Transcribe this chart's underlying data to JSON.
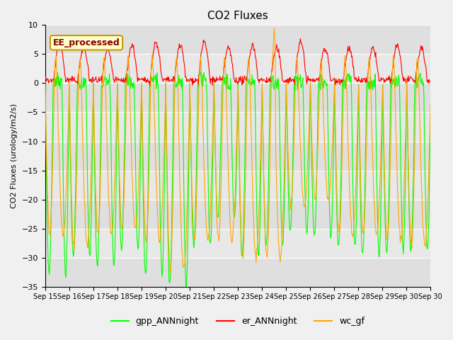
{
  "title": "CO2 Fluxes",
  "ylabel": "CO2 Fluxes (urology/m2/s)",
  "ylim": [
    -35,
    10
  ],
  "yticks": [
    -35,
    -30,
    -25,
    -20,
    -15,
    -10,
    -5,
    0,
    5,
    10
  ],
  "bg_color": "#f0f0f0",
  "plot_bg_color": "#e8e8e8",
  "legend_label": "EE_processed",
  "legend_bg": "#ffffcc",
  "legend_border": "#cc9900",
  "series": {
    "gpp_ANNnight": {
      "color": "#00ff00",
      "label": "gpp_ANNnight"
    },
    "er_ANNnight": {
      "color": "#ff0000",
      "label": "er_ANNnight"
    },
    "wc_gf": {
      "color": "#ffa500",
      "label": "wc_gf"
    }
  },
  "n_days": 16,
  "start_day": 15,
  "points_per_day": 48,
  "x_tick_labels": [
    "Sep 15",
    "Sep 16",
    "Sep 17",
    "Sep 18",
    "Sep 19",
    "Sep 20",
    "Sep 21",
    "Sep 22",
    "Sep 23",
    "Sep 24",
    "Sep 25",
    "Sep 26",
    "Sep 27",
    "Sep 28",
    "Sep 29",
    "Sep 30"
  ],
  "gpp_day_min": -33,
  "gpp_day_max": 1,
  "er_day_max": 7,
  "wc_day_min": -27,
  "wc_day_max": 4.5
}
